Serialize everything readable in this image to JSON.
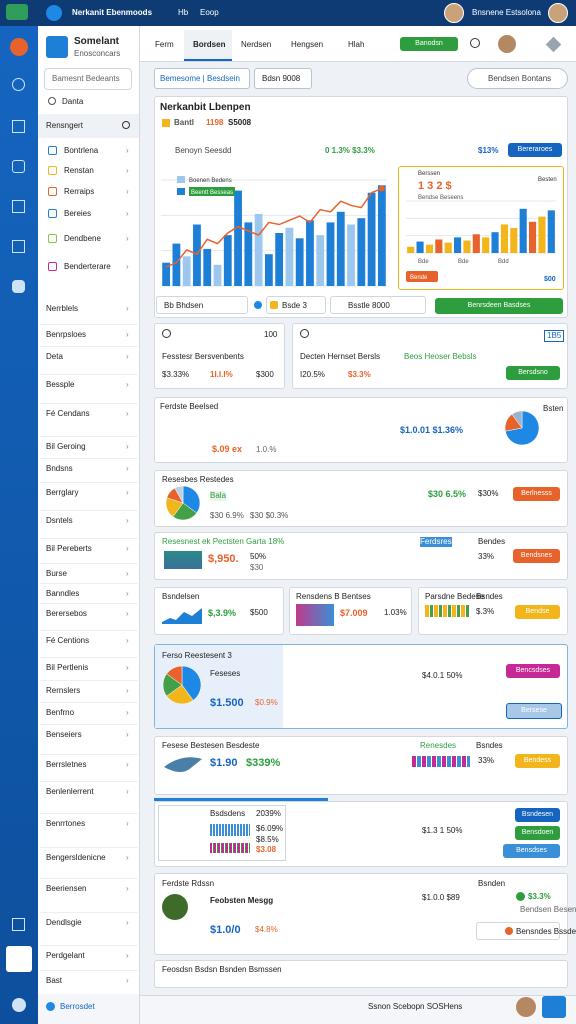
{
  "topbar": {
    "title": "Nerkanit Ebenmoods",
    "links": [
      "Hb",
      "Eoop"
    ],
    "user": "Bnsnene Estsolona"
  },
  "sidebar": {
    "brand": "Somelant",
    "brand_sub": "Enosconcars",
    "search": "Bamesnt Bedeants",
    "filter": "Danta",
    "section": "Rensngert",
    "feature_items": [
      "Bontrlena",
      "Renstan",
      "Rerraips",
      "Bereies",
      "Dendbene",
      "Benderterare"
    ],
    "items": [
      "Nerrblels",
      "Benrpsloes",
      "Deta",
      "Bessple",
      "Fé Cendans",
      "Bil Geroing",
      "Bndsns",
      "Berrglary",
      "Dsntels",
      "Bil Pereberts",
      "Burse",
      "Banndles",
      "Berersebos",
      "Fé Centions",
      "Bil Pertlenis",
      "Rernslers",
      "Benfrno",
      "Benseiers",
      "Berrsletnes",
      "Benlenlerrent",
      "Benrrtones",
      "Bengersldenicne",
      "Beeriensen",
      "Dendlsgie",
      "Perdgelant",
      "Bast"
    ],
    "footer": "Berrosdet"
  },
  "tabs": {
    "items": [
      "Ferm",
      "Bordsen",
      "Nerdsen",
      "Hengsen",
      "Hlah"
    ],
    "button": "Banodsn"
  },
  "filters": {
    "select": "Bemesome | Besdsein",
    "chip": "Bdsn 9008",
    "search": "Bendsen Bontans"
  },
  "overview": {
    "title": "Nerkanbit Lbenpen",
    "badge": "Bantl",
    "stat_a": "1198",
    "stat_b": "S5008",
    "chart_label": "Benoyn Seesdd",
    "delta": "0 1.3% $3.3%",
    "total": "$13%",
    "button": "Bereraroes",
    "main_chart": {
      "type": "bar",
      "legend": [
        "Boenen Bedens",
        "Beentt Besseas"
      ],
      "ylim": [
        0,
        100
      ],
      "values": [
        22,
        40,
        28,
        58,
        35,
        20,
        48,
        90,
        60,
        68,
        30,
        50,
        55,
        45,
        62,
        48,
        60,
        70,
        58,
        64,
        88,
        95
      ],
      "colors": [
        "#1e7fd6",
        "#1e7fd6",
        "#9cc8ef",
        "#1e7fd6",
        "#1e7fd6",
        "#9cc8ef",
        "#1e7fd6",
        "#1e7fd6",
        "#1e7fd6",
        "#9cc8ef",
        "#1e7fd6",
        "#1e7fd6",
        "#9cc8ef",
        "#1e7fd6",
        "#1e7fd6",
        "#9cc8ef",
        "#1e7fd6",
        "#1e7fd6",
        "#9cc8ef",
        "#1e7fd6",
        "#1e7fd6",
        "#1e7fd6"
      ],
      "line": [
        18,
        22,
        34,
        30,
        44,
        40,
        50,
        56,
        52,
        48,
        60,
        58,
        62,
        66,
        60,
        72,
        70,
        80,
        76,
        74,
        88,
        92
      ],
      "line_color": "#e8632b"
    },
    "side_chart": {
      "type": "bar",
      "title": "Berssen",
      "stat": "1 3 2 $",
      "sub": "Bendse Beseens",
      "corner": "Besten",
      "ylim": [
        0,
        100
      ],
      "values": [
        12,
        22,
        16,
        26,
        20,
        30,
        24,
        36,
        30,
        40,
        55,
        48,
        85,
        60,
        70,
        82
      ],
      "colors": [
        "#f2b51c",
        "#1e7fd6",
        "#f2b51c",
        "#e8632b",
        "#f2b51c",
        "#1e7fd6",
        "#f2b51c",
        "#e8632b",
        "#f2b51c",
        "#1e7fd6",
        "#f2b51c",
        "#f2b51c",
        "#1e7fd6",
        "#e8632b",
        "#f2b51c",
        "#1e7fd6"
      ],
      "button": "Bende",
      "foot": [
        "Bde",
        "Bde",
        "Bdd"
      ],
      "value": "$00"
    },
    "controls": [
      "Bb Bhdsen",
      "Bsde 3",
      "Bsstle 8000"
    ],
    "control_button": "Benrsdeen Basdses"
  },
  "summary_left": {
    "label": "Fesstesr Bersvenbents",
    "code": "100",
    "stats": [
      "$3.33%",
      "1I.I.I%",
      "$300"
    ]
  },
  "summary_right": {
    "label": "Decten Hernset Bersls",
    "label2": "Beos Heoser Bebsls",
    "code": "1B5",
    "stats": [
      "I20.5%",
      "$3.3%"
    ],
    "button": "Bersdsno"
  },
  "card3": {
    "title": "Ferdste Beelsed",
    "corner": "Bsten",
    "stat_red": "$.09 ex",
    "stat_gray": "1.0.%",
    "value": "$1.0.01 $1.36%",
    "pie": {
      "type": "pie",
      "values": [
        72,
        18,
        10
      ],
      "colors": [
        "#1e88e5",
        "#e8632b",
        "#9ab3cc"
      ]
    }
  },
  "card4": {
    "title": "Resesbes Restedes",
    "tag": "Bala",
    "stats": [
      "$30 6.9%",
      "$30 $0.3%"
    ],
    "value": "$30 6.5%",
    "pct": "$30%",
    "button": "Berlnesss",
    "pie": {
      "type": "pie",
      "values": [
        35,
        25,
        20,
        12,
        8
      ],
      "colors": [
        "#1e88e5",
        "#43a047",
        "#f2b51c",
        "#e8632b",
        "#c0cfe0"
      ]
    }
  },
  "card5": {
    "title": "Resesnest ek Pectsten Garta 18%",
    "big": "$,950.",
    "pct": "50%",
    "sub": "$30",
    "label": "Ferdsres",
    "corner": "Bendes",
    "value": "33%",
    "button": "Bendsnes"
  },
  "card6": [
    {
      "title": "Bsndelsen",
      "stat": "$,3.9%",
      "value": "$500"
    },
    {
      "title": "Rensdens B Bentses",
      "stat": "$7.009",
      "value": "1.03%"
    },
    {
      "title": "Parsdne Bedese",
      "corner": "Bsndes",
      "value": "$.3%",
      "button": "Bendse"
    }
  ],
  "card7": {
    "title": "Ferso Reestesent 3",
    "name": "Feseses",
    "stat": "$1.500",
    "pct": "$0.9%",
    "value": "$4.0.1 50%",
    "button": "Bencsdses",
    "button2": "Bersese",
    "pie": {
      "type": "pie",
      "values": [
        40,
        25,
        20,
        15
      ],
      "colors": [
        "#1e88e5",
        "#f2b51c",
        "#43a047",
        "#e8632b"
      ]
    }
  },
  "card8": {
    "title": "Fesese Bestesen Besdeste",
    "stat": "$1.90",
    "pct": "$339%",
    "label": "Renesdes",
    "corner": "Bsndes",
    "value": "33%",
    "button": "Bendess"
  },
  "card9": {
    "title": "Bsdsdens",
    "code": "2039%",
    "stats": [
      "$6.09%",
      "$8.5%",
      "$3.08"
    ],
    "value": "$1.3 1 50%",
    "buttons": [
      "Bsndesen",
      "Bensdoen",
      "Bensdses"
    ]
  },
  "card10": {
    "title": "Ferdste Rdssn",
    "name": "Feobsten Mesgg",
    "stat": "$1.0/0",
    "pct": "$4.8%",
    "value": "$1.0.0 $89",
    "corner": "Bsnden",
    "value2": "$3.3%",
    "sub": "Bendsen Besen",
    "button": "Bensndes Bssde"
  },
  "card11": {
    "title": "Feosdsn Bsdsn Bsnden Bsmssen"
  },
  "bottombar": {
    "text": "Ssnon Scebopn SOSHens"
  }
}
